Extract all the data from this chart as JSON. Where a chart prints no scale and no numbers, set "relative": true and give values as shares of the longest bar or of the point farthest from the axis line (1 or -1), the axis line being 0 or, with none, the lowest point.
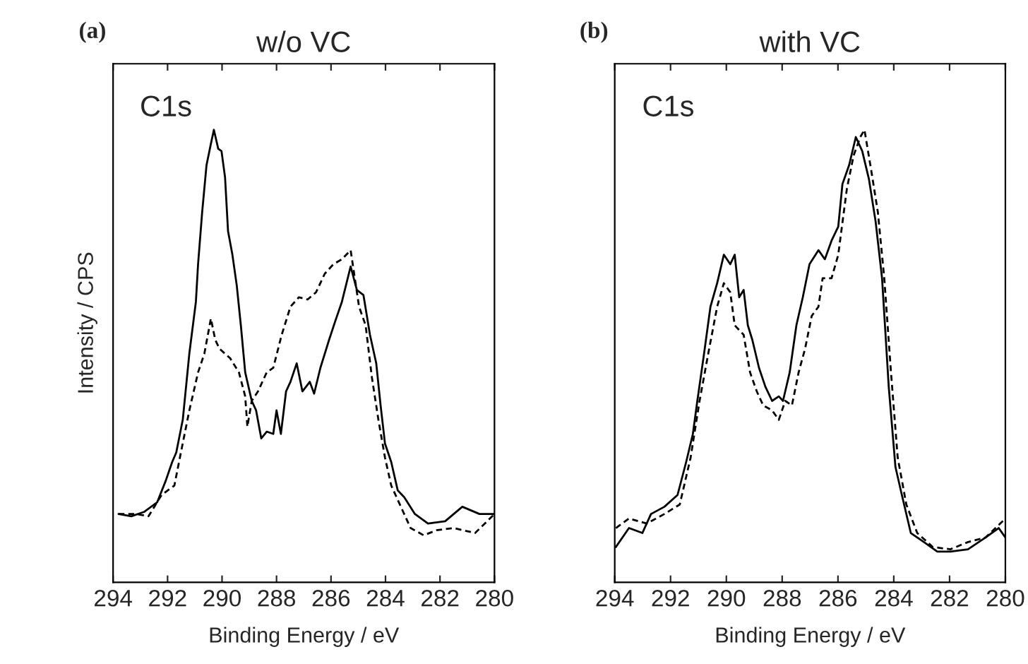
{
  "chart_data": [
    {
      "type": "line",
      "title": "w/o VC",
      "xlabel": "Binding Energy / eV",
      "ylabel": "Intensity / CPS",
      "annotations": [
        "(a)",
        "C1s"
      ],
      "relative": true,
      "xlim": [
        294,
        280
      ],
      "xticks": [
        294,
        292,
        290,
        288,
        286,
        284,
        282,
        280
      ],
      "tick_labels": "x",
      "grid": false,
      "legend": false,
      "series": [
        {
          "color": "#000000",
          "line_style": "solid",
          "x": [
            293.8,
            293.33,
            292.85,
            292.38,
            292.07,
            291.83,
            291.68,
            291.44,
            291.2,
            290.96,
            290.88,
            290.73,
            290.57,
            290.41,
            290.3,
            290.14,
            290.02,
            289.89,
            289.78,
            289.62,
            289.46,
            289.31,
            289.15,
            288.91,
            288.75,
            288.56,
            288.36,
            288.12,
            288.0,
            287.84,
            287.65,
            287.49,
            287.26,
            287.05,
            286.78,
            286.62,
            286.39,
            286.07,
            285.84,
            285.6,
            285.28,
            285.05,
            284.81,
            284.57,
            284.34,
            284.18,
            284.02,
            283.79,
            283.55,
            283.31,
            282.92,
            282.44,
            281.81,
            281.18,
            280.55,
            280.0
          ],
          "values": [
            0.151,
            0.146,
            0.156,
            0.177,
            0.224,
            0.266,
            0.287,
            0.36,
            0.506,
            0.62,
            0.703,
            0.818,
            0.922,
            0.969,
            1.0,
            0.958,
            0.953,
            0.895,
            0.776,
            0.724,
            0.656,
            0.568,
            0.464,
            0.401,
            0.38,
            0.318,
            0.333,
            0.328,
            0.38,
            0.328,
            0.422,
            0.443,
            0.484,
            0.422,
            0.443,
            0.417,
            0.474,
            0.536,
            0.578,
            0.62,
            0.698,
            0.646,
            0.635,
            0.547,
            0.484,
            0.391,
            0.307,
            0.266,
            0.203,
            0.188,
            0.151,
            0.13,
            0.135,
            0.167,
            0.151,
            0.151
          ]
        },
        {
          "color": "#000000",
          "line_style": "dashed",
          "x": [
            293.8,
            293.17,
            292.7,
            292.22,
            291.75,
            291.51,
            291.2,
            290.88,
            290.65,
            290.41,
            290.25,
            290.09,
            289.7,
            289.38,
            289.15,
            289.07,
            288.91,
            288.68,
            288.36,
            288.12,
            287.81,
            287.49,
            287.18,
            286.86,
            286.55,
            286.23,
            285.91,
            285.6,
            285.28,
            284.97,
            284.73,
            284.5,
            284.26,
            284.02,
            283.79,
            283.39,
            283.08,
            282.6,
            282.13,
            281.5,
            280.71,
            280.0
          ],
          "values": [
            0.151,
            0.151,
            0.146,
            0.193,
            0.214,
            0.287,
            0.38,
            0.464,
            0.505,
            0.583,
            0.536,
            0.516,
            0.495,
            0.464,
            0.411,
            0.344,
            0.401,
            0.422,
            0.464,
            0.474,
            0.547,
            0.609,
            0.63,
            0.625,
            0.641,
            0.682,
            0.703,
            0.714,
            0.734,
            0.609,
            0.568,
            0.453,
            0.359,
            0.276,
            0.214,
            0.161,
            0.12,
            0.104,
            0.115,
            0.12,
            0.109,
            0.151
          ]
        }
      ]
    },
    {
      "type": "line",
      "title": "with VC",
      "xlabel": "Binding Energy / eV",
      "annotations": [
        "(b)",
        "C1s"
      ],
      "relative": true,
      "xlim": [
        294,
        280
      ],
      "xticks": [
        294,
        292,
        290,
        288,
        286,
        284,
        282,
        280
      ],
      "tick_labels": "x",
      "grid": false,
      "legend": false,
      "series": [
        {
          "color": "#000000",
          "line_style": "solid",
          "x": [
            293.96,
            293.49,
            293.01,
            292.7,
            292.22,
            291.75,
            291.44,
            291.2,
            291.04,
            290.8,
            290.57,
            290.33,
            290.09,
            289.86,
            289.7,
            289.54,
            289.38,
            289.23,
            289.07,
            288.83,
            288.6,
            288.36,
            288.12,
            287.97,
            287.73,
            287.49,
            287.26,
            287.02,
            286.7,
            286.47,
            286.23,
            285.99,
            285.84,
            285.6,
            285.36,
            285.13,
            284.89,
            284.65,
            284.42,
            284.18,
            283.94,
            283.71,
            283.39,
            282.92,
            282.44,
            281.97,
            281.34,
            280.71,
            280.24,
            280.0
          ],
          "values": [
            0.078,
            0.12,
            0.109,
            0.151,
            0.167,
            0.193,
            0.266,
            0.328,
            0.401,
            0.505,
            0.609,
            0.661,
            0.724,
            0.703,
            0.724,
            0.63,
            0.646,
            0.568,
            0.536,
            0.474,
            0.432,
            0.401,
            0.411,
            0.401,
            0.464,
            0.568,
            0.63,
            0.703,
            0.734,
            0.714,
            0.755,
            0.786,
            0.88,
            0.922,
            0.984,
            0.953,
            0.891,
            0.797,
            0.672,
            0.432,
            0.255,
            0.193,
            0.109,
            0.089,
            0.068,
            0.068,
            0.073,
            0.099,
            0.12,
            0.099
          ]
        },
        {
          "color": "#000000",
          "line_style": "dashed",
          "x": [
            293.96,
            293.49,
            292.85,
            292.22,
            291.67,
            291.28,
            290.96,
            290.65,
            290.33,
            290.09,
            289.86,
            289.7,
            289.38,
            289.15,
            288.91,
            288.68,
            288.36,
            288.12,
            287.89,
            287.65,
            287.41,
            287.18,
            286.94,
            286.7,
            286.55,
            286.23,
            285.99,
            285.68,
            285.44,
            285.2,
            285.05,
            284.81,
            284.57,
            284.34,
            284.1,
            283.86,
            283.55,
            283.16,
            282.6,
            281.97,
            281.34,
            280.71,
            280.0
          ],
          "values": [
            0.12,
            0.141,
            0.13,
            0.151,
            0.172,
            0.276,
            0.401,
            0.505,
            0.609,
            0.661,
            0.641,
            0.568,
            0.547,
            0.464,
            0.422,
            0.391,
            0.38,
            0.359,
            0.401,
            0.391,
            0.464,
            0.516,
            0.589,
            0.609,
            0.672,
            0.672,
            0.724,
            0.87,
            0.943,
            0.984,
            1.0,
            0.911,
            0.818,
            0.672,
            0.464,
            0.276,
            0.172,
            0.109,
            0.078,
            0.073,
            0.089,
            0.099,
            0.141
          ]
        }
      ]
    }
  ]
}
